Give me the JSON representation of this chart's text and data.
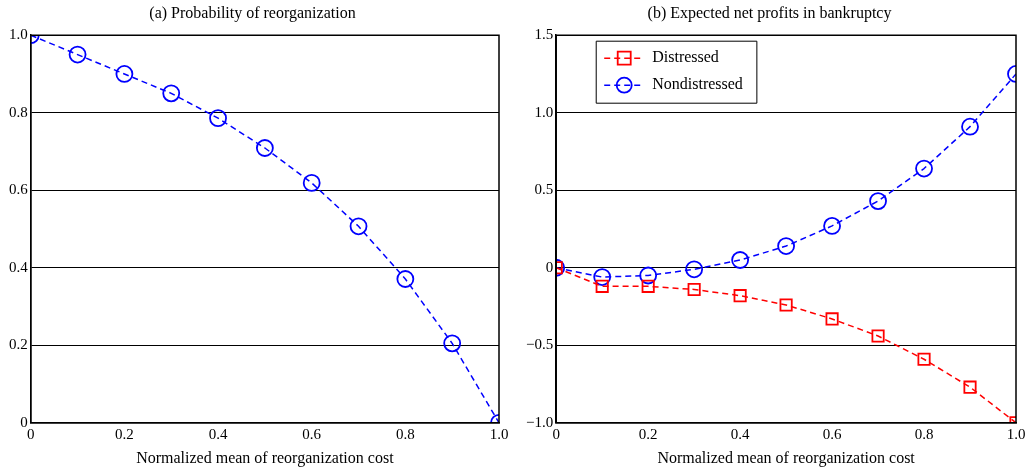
{
  "chart_data": [
    {
      "type": "line",
      "title": "(a) Probability of reorganization",
      "xlabel": "Normalized mean of reorganization cost",
      "x": [
        0,
        0.1,
        0.2,
        0.3,
        0.4,
        0.5,
        0.6,
        0.7,
        0.8,
        0.9,
        1.0
      ],
      "series": [
        {
          "color": "#0000ff",
          "marker": "circle",
          "values": [
            1.0,
            0.95,
            0.9,
            0.85,
            0.786,
            0.709,
            0.619,
            0.507,
            0.371,
            0.205,
            0
          ]
        }
      ],
      "xlim": [
        0,
        1
      ],
      "xticks": [
        0,
        0.2,
        0.4,
        0.6,
        0.8,
        {
          "value": 1,
          "label": "1.0"
        }
      ],
      "ylim": [
        0,
        1
      ],
      "yticks": [
        0,
        0.2,
        0.4,
        0.6,
        0.8,
        {
          "value": 1,
          "label": "1.0"
        }
      ],
      "grid": "y",
      "line_style": "dashed",
      "legend": false
    },
    {
      "type": "line",
      "title": "(b) Expected net profits in bankruptcy",
      "xlabel": "Normalized mean of reorganization cost",
      "x": [
        0,
        0.1,
        0.2,
        0.3,
        0.4,
        0.5,
        0.6,
        0.7,
        0.8,
        0.9,
        1.0
      ],
      "series": [
        {
          "name": "Distressed",
          "color": "#ff0000",
          "marker": "square",
          "values": [
            0,
            -0.12,
            -0.12,
            -0.14,
            -0.18,
            -0.24,
            -0.33,
            -0.44,
            -0.59,
            -0.77,
            -1.0
          ]
        },
        {
          "name": "Nondistressed",
          "color": "#0000ff",
          "marker": "circle",
          "values": [
            0,
            -0.06,
            -0.05,
            -0.01,
            0.05,
            0.14,
            0.27,
            0.43,
            0.64,
            0.91,
            1.25
          ]
        }
      ],
      "xlim": [
        0,
        1
      ],
      "xticks": [
        0,
        0.2,
        0.4,
        0.6,
        0.8,
        {
          "value": 1,
          "label": "1.0"
        }
      ],
      "ylim": [
        -1,
        1.5
      ],
      "yticks": [
        {
          "value": -1,
          "label": "−1.0"
        },
        {
          "value": -0.5,
          "label": "−0.5"
        },
        0,
        0.5,
        {
          "value": 1,
          "label": "1.0"
        },
        1.5
      ],
      "grid": "y",
      "line_style": "dashed",
      "legend": "top left"
    }
  ]
}
